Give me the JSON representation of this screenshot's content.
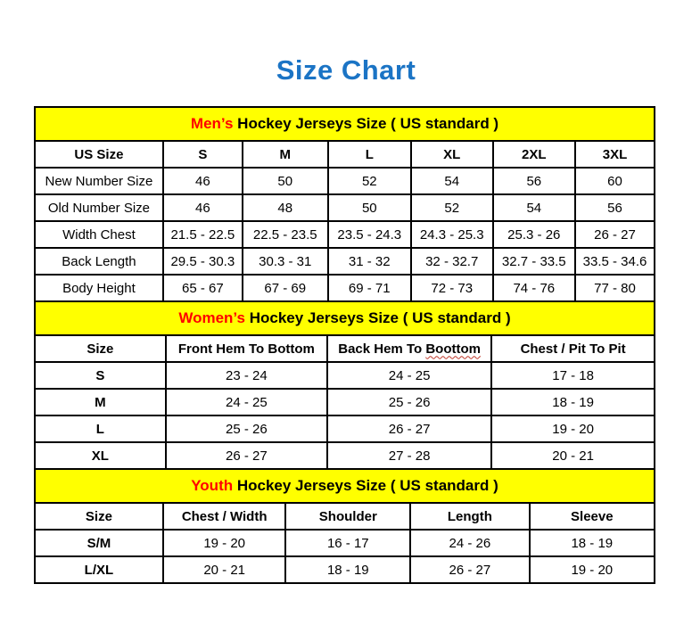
{
  "page": {
    "title": "Size Chart"
  },
  "colors": {
    "title_blue": "#1b74c5",
    "band_yellow": "#ffff00",
    "accent_red": "#ff0000",
    "border_black": "#000000"
  },
  "spellcheck_flag": {
    "table_index": 1,
    "column_index": 2,
    "word": "Boottom"
  },
  "chart_data": [
    {
      "type": "table",
      "name": "mens",
      "title_highlight": "Men’s",
      "title_rest": " Hockey Jerseys Size ( US standard )",
      "columns": [
        "US Size",
        "S",
        "M",
        "L",
        "XL",
        "2XL",
        "3XL"
      ],
      "rows": [
        [
          "New Number Size",
          "46",
          "50",
          "52",
          "54",
          "56",
          "60"
        ],
        [
          "Old Number Size",
          "46",
          "48",
          "50",
          "52",
          "54",
          "56"
        ],
        [
          "Width Chest",
          "21.5 - 22.5",
          "22.5 - 23.5",
          "23.5 - 24.3",
          "24.3 - 25.3",
          "25.3 - 26",
          "26 - 27"
        ],
        [
          "Back Length",
          "29.5 - 30.3",
          "30.3 - 31",
          "31 - 32",
          "32 - 32.7",
          "32.7 - 33.5",
          "33.5 - 34.6"
        ],
        [
          "Body Height",
          "65 - 67",
          "67 - 69",
          "69 - 71",
          "72 - 73",
          "74 - 76",
          "77 - 80"
        ]
      ],
      "col_widths": [
        "20.7%",
        "12.8%",
        "13.8%",
        "13.4%",
        "13.2%",
        "13.3%",
        "12.8%"
      ],
      "first_col_bold": false
    },
    {
      "type": "table",
      "name": "womens",
      "title_highlight": "Women’s",
      "title_rest": " Hockey Jerseys Size ( US standard )",
      "columns": [
        "Size",
        "Front Hem To Bottom",
        "Back Hem To Boottom",
        "Chest / Pit To Pit"
      ],
      "rows": [
        [
          "S",
          "23 - 24",
          "24 - 25",
          "17 - 18"
        ],
        [
          "M",
          "24 - 25",
          "25 - 26",
          "18 - 19"
        ],
        [
          "L",
          "25 - 26",
          "26 - 27",
          "19 - 20"
        ],
        [
          "XL",
          "26 - 27",
          "27 - 28",
          "20 - 21"
        ]
      ],
      "col_widths": [
        "21.1%",
        "26.1%",
        "26.5%",
        "26.3%"
      ],
      "first_col_bold": true
    },
    {
      "type": "table",
      "name": "youth",
      "title_highlight": "Youth",
      "title_rest": " Hockey Jerseys Size ( US standard )",
      "columns": [
        "Size",
        "Chest / Width",
        "Shoulder",
        "Length",
        "Sleeve"
      ],
      "rows": [
        [
          "S/M",
          "19 - 20",
          "16 - 17",
          "24 - 26",
          "18 - 19"
        ],
        [
          "L/XL",
          "20 - 21",
          "18 - 19",
          "26 - 27",
          "19 - 20"
        ]
      ],
      "col_widths": [
        "20.7%",
        "19.8%",
        "20.1%",
        "19.2%",
        "20.2%"
      ],
      "first_col_bold": true
    }
  ]
}
